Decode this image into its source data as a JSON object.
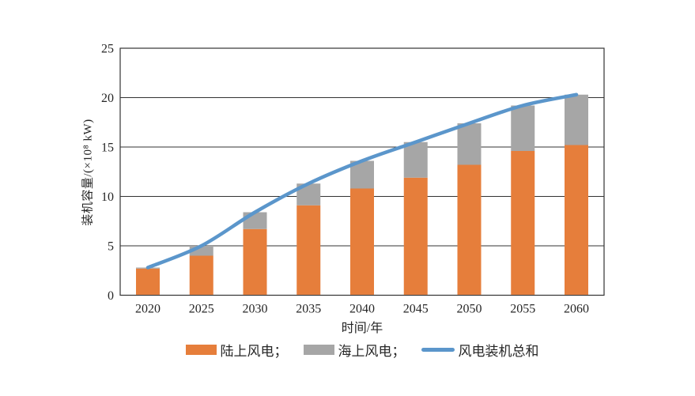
{
  "figure": {
    "background": "#ffffff"
  },
  "chart_data": {
    "type": "bar",
    "stacked": true,
    "title": "",
    "categories": [
      "2020",
      "2025",
      "2030",
      "2035",
      "2040",
      "2045",
      "2050",
      "2055",
      "2060"
    ],
    "series": [
      {
        "name": "陆上风电",
        "kind": "bar",
        "color": "#E67E3B",
        "values": [
          2.7,
          4.0,
          6.7,
          9.1,
          10.8,
          11.9,
          13.2,
          14.6,
          15.2
        ]
      },
      {
        "name": "海上风电",
        "kind": "bar",
        "color": "#A6A6A6",
        "values": [
          0.1,
          1.0,
          1.7,
          2.2,
          2.8,
          3.6,
          4.2,
          4.6,
          5.1
        ]
      },
      {
        "name": "风电装机总和",
        "kind": "line",
        "color": "#5B96CB",
        "values": [
          2.8,
          5.0,
          8.4,
          11.3,
          13.6,
          15.5,
          17.4,
          19.2,
          20.3
        ]
      }
    ],
    "xlabel": "时间/年",
    "ylabel": "装机容量/(×10⁸ kW)",
    "ylim": [
      0,
      25
    ],
    "yticks": [
      0,
      5,
      10,
      15,
      20,
      25
    ],
    "grid": "horizontal",
    "legend_position": "bottom",
    "legend": [
      {
        "label": "陆上风电；",
        "swatch": "rect",
        "color": "#E67E3B"
      },
      {
        "label": "海上风电；",
        "swatch": "rect",
        "color": "#A6A6A6"
      },
      {
        "label": "风电装机总和",
        "swatch": "line",
        "color": "#5B96CB"
      }
    ]
  },
  "style_colors": {
    "axis": "#333333",
    "grid": "#333333",
    "tick_text": "#262626"
  }
}
